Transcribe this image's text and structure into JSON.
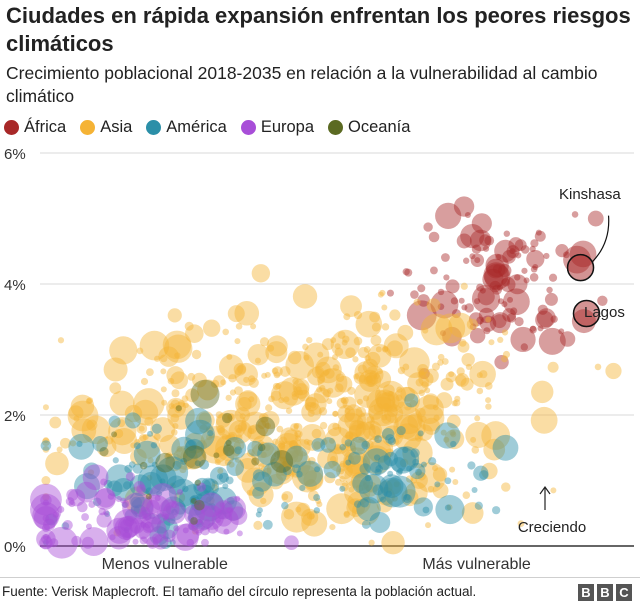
{
  "title": "Ciudades en rápida expansión enfrentan los peores riesgos climáticos",
  "subtitle": "Crecimiento poblacional 2018-2035 en relación a la vulnerabilidad al cambio climático",
  "legend": [
    {
      "label": "África",
      "color": "#a82828"
    },
    {
      "label": "Asia",
      "color": "#f5b335"
    },
    {
      "label": "América",
      "color": "#2b8fa8"
    },
    {
      "label": "Europa",
      "color": "#a84ed8"
    },
    {
      "label": "Oceanía",
      "color": "#5b6a22"
    }
  ],
  "footer": "Fuente: Verisk Maplecroft. El tamaño del círculo representa la población actual.",
  "logo": [
    "B",
    "B",
    "C"
  ],
  "chart_data": {
    "type": "scatter",
    "title": "Crecimiento poblacional 2018-2035 en relación a la vulnerabilidad al cambio climático",
    "xlabel_left": "Menos vulnerable",
    "xlabel_right": "Más vulnerable",
    "xlim": [
      0,
      100
    ],
    "ylim": [
      0,
      6
    ],
    "yticks": [
      "0%",
      "2%",
      "4%",
      "6%"
    ],
    "ytick_values": [
      0,
      2,
      4,
      6
    ],
    "grid": true,
    "legend_position": "top-left",
    "series": [
      {
        "name": "África",
        "color": "#a82828",
        "clusters": [
          {
            "cx": 78,
            "cy": 4.0,
            "sx": 7,
            "sy": 0.6,
            "n": 120,
            "seed": 11
          }
        ]
      },
      {
        "name": "Asia",
        "color": "#f5b335",
        "clusters": [
          {
            "cx": 40,
            "cy": 2.0,
            "sx": 18,
            "sy": 0.7,
            "n": 380,
            "seed": 21
          },
          {
            "cx": 60,
            "cy": 2.6,
            "sx": 10,
            "sy": 0.6,
            "n": 120,
            "seed": 22
          },
          {
            "cx": 50,
            "cy": 1.1,
            "sx": 12,
            "sy": 0.5,
            "n": 90,
            "seed": 23
          }
        ]
      },
      {
        "name": "América",
        "color": "#2b8fa8",
        "clusters": [
          {
            "cx": 22,
            "cy": 0.9,
            "sx": 9,
            "sy": 0.45,
            "n": 110,
            "seed": 31
          },
          {
            "cx": 58,
            "cy": 1.1,
            "sx": 9,
            "sy": 0.4,
            "n": 80,
            "seed": 32
          }
        ]
      },
      {
        "name": "Europa",
        "color": "#a84ed8",
        "clusters": [
          {
            "cx": 15,
            "cy": 0.4,
            "sx": 10,
            "sy": 0.25,
            "n": 110,
            "seed": 41
          }
        ]
      },
      {
        "name": "Oceanía",
        "color": "#5b6a22",
        "clusters": [
          {
            "cx": 28,
            "cy": 1.3,
            "sx": 8,
            "sy": 0.5,
            "n": 20,
            "seed": 51
          }
        ]
      }
    ],
    "highlights": [
      {
        "name": "Kinshasa",
        "x": 91,
        "y": 4.25,
        "label": "Kinshasa"
      },
      {
        "name": "Lagos",
        "x": 92,
        "y": 3.55,
        "label": "Lagos"
      }
    ],
    "annotation": {
      "label": "Creciendo",
      "x": 89,
      "y": 0.6
    }
  }
}
